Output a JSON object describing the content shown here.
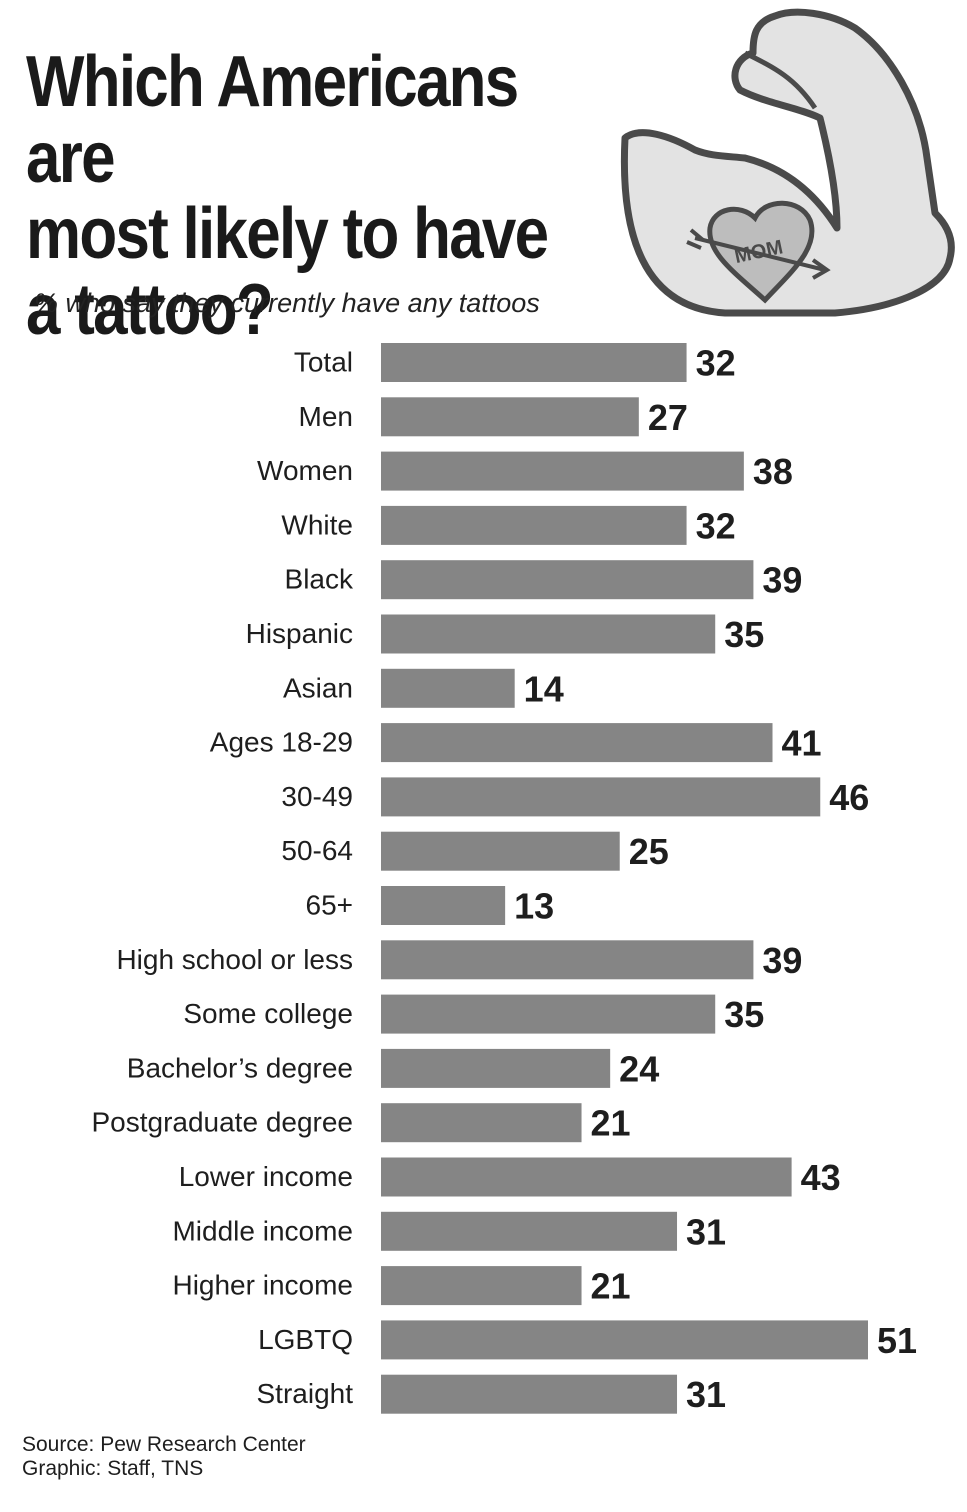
{
  "header": {
    "title": "Which Americans are\nmost likely to have\na tattoo?",
    "subtitle": "% who say they currently have any tattoos"
  },
  "illustration": {
    "icon": "flexed-arm-icon",
    "tattoo_text": "MOM"
  },
  "colors": {
    "bar": "#858585",
    "text": "#1e1e1e",
    "arm_fill": "#e3e3e3",
    "heart_fill": "#bdbdbd"
  },
  "footer": {
    "source": "Source: Pew Research Center",
    "credit": "Graphic: Staff, TNS"
  },
  "chart_data": {
    "type": "bar",
    "orientation": "horizontal",
    "title": "Which Americans are most likely to have a tattoo?",
    "subtitle": "% who say they currently have any tattoos",
    "categories": [
      "Total",
      "Men",
      "Women",
      "White",
      "Black",
      "Hispanic",
      "Asian",
      "Ages 18-29",
      "30-49",
      "50-64",
      "65+",
      "High school or less",
      "Some college",
      "Bachelor’s degree",
      "Postgraduate degree",
      "Lower income",
      "Middle income",
      "Higher income",
      "LGBTQ",
      "Straight"
    ],
    "values": [
      32,
      27,
      38,
      32,
      39,
      35,
      14,
      41,
      46,
      25,
      13,
      39,
      35,
      24,
      21,
      43,
      31,
      21,
      51,
      31
    ],
    "xlim": [
      0,
      51
    ],
    "grid": false,
    "legend": false
  }
}
